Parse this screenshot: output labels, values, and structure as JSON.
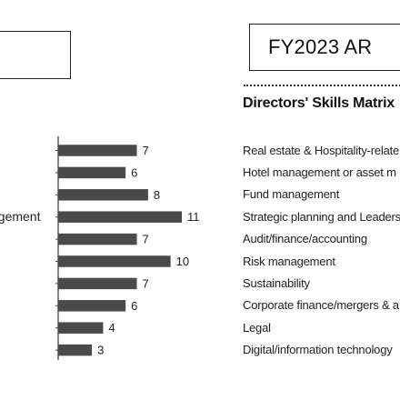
{
  "header": {
    "report_label": "FY2023 AR",
    "matrix_title": "Directors' Skills Matrix"
  },
  "partial_label": "agement",
  "chart_data": {
    "type": "bar",
    "orientation": "horizontal",
    "categories": [
      "Real estate & Hospitality-relate",
      "Hotel management or asset m",
      "Fund management",
      "Strategic planning and Leaders",
      "Audit/finance/accounting",
      "Risk management",
      "Sustainability",
      "Corporate finance/mergers & a",
      "Legal",
      "Digital/information technology"
    ],
    "values": [
      7,
      6,
      8,
      11,
      7,
      10,
      7,
      6,
      4,
      3
    ],
    "data_labels": [
      "7",
      "6",
      "8",
      "11",
      "7",
      "10",
      "7",
      "6",
      "4",
      "3"
    ],
    "xlim": [
      0,
      11
    ],
    "bar_color": "#4a4a4a",
    "axis_color": "#444444",
    "grid": false
  }
}
